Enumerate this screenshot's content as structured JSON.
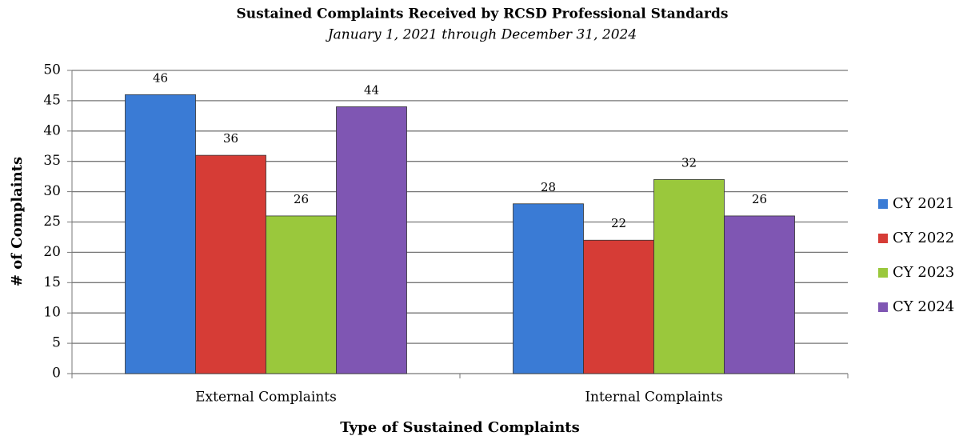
{
  "chart_data": {
    "type": "bar",
    "title": "Sustained Complaints Received by RCSD Professional Standards",
    "subtitle": "January 1, 2021 through December 31, 2024",
    "x_label": "Type of Sustained Complaints",
    "y_label": "# of Complaints",
    "categories": [
      "External Complaints",
      "Internal Complaints"
    ],
    "series": [
      {
        "name": "CY 2021",
        "color": "#3a7bd5",
        "values": [
          46,
          28
        ]
      },
      {
        "name": "CY 2022",
        "color": "#d63c36",
        "values": [
          36,
          22
        ]
      },
      {
        "name": "CY 2023",
        "color": "#9ac83c",
        "values": [
          26,
          32
        ]
      },
      {
        "name": "CY 2024",
        "color": "#7f56b3",
        "values": [
          44,
          26
        ]
      }
    ],
    "ylim": [
      0,
      50
    ],
    "yticks": [
      0,
      5,
      10,
      15,
      20,
      25,
      30,
      35,
      40,
      45,
      50
    ],
    "grid": true,
    "legend": "right"
  }
}
